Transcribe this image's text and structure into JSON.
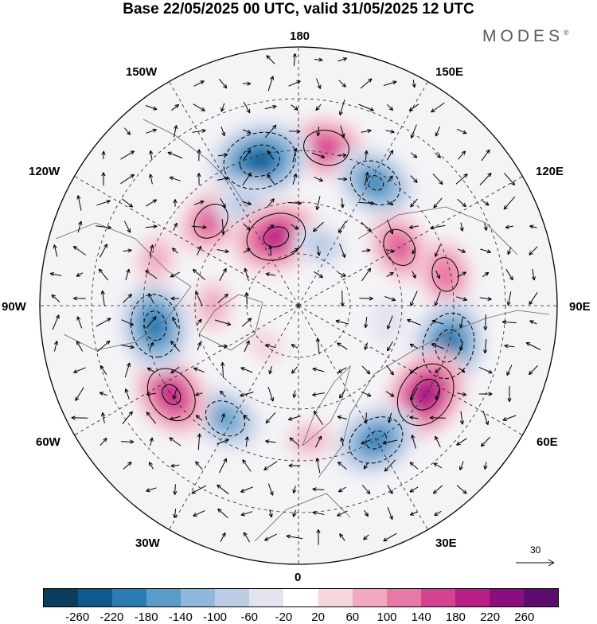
{
  "title": "Base 22/05/2025 00 UTC, valid 31/05/2025 12 UTC",
  "brand": "MODES",
  "brand_mark": "®",
  "longitude_labels": [
    "180",
    "150E",
    "120E",
    "90E",
    "60E",
    "30E",
    "0",
    "30W",
    "60W",
    "90W",
    "120W",
    "150W"
  ],
  "vector_scale_label": "30",
  "colorbar": {
    "ticks": [
      "-260",
      "-220",
      "-180",
      "-140",
      "-100",
      "-60",
      "-20",
      "20",
      "60",
      "100",
      "140",
      "180",
      "220",
      "260"
    ],
    "colors": [
      "#0c3c5c",
      "#0e5a8a",
      "#2c7cb4",
      "#5a9cc8",
      "#8fb8da",
      "#bccde6",
      "#e4e4f0",
      "#ffffff",
      "#f6d6dc",
      "#f0a9bf",
      "#e879a6",
      "#d54493",
      "#b81f84",
      "#8c0d7d",
      "#5c0b6e"
    ]
  },
  "map_style": {
    "ocean": "#f4f4f7",
    "coast": "#666666",
    "grid": "#222222"
  },
  "anomaly_cells": [
    {
      "lon": 170,
      "r": 0.62,
      "value": 170
    },
    {
      "lon": -165,
      "r": 0.58,
      "value": -250
    },
    {
      "lon": 148,
      "r": 0.56,
      "value": -190
    },
    {
      "lon": -134,
      "r": 0.47,
      "value": 150
    },
    {
      "lon": -152,
      "r": 0.45,
      "value": -100
    },
    {
      "lon": -162,
      "r": 0.28,
      "value": 210
    },
    {
      "lon": 160,
      "r": 0.25,
      "value": -90
    },
    {
      "lon": 120,
      "r": 0.45,
      "value": 150
    },
    {
      "lon": 102,
      "r": 0.58,
      "value": 140
    },
    {
      "lon": 75,
      "r": 0.6,
      "value": -230
    },
    {
      "lon": 55,
      "r": 0.6,
      "value": 230
    },
    {
      "lon": 30,
      "r": 0.6,
      "value": -200
    },
    {
      "lon": 5,
      "r": 0.52,
      "value": 70
    },
    {
      "lon": -33,
      "r": 0.52,
      "value": -160
    },
    {
      "lon": -55,
      "r": 0.6,
      "value": 200
    },
    {
      "lon": -82,
      "r": 0.56,
      "value": -220
    },
    {
      "lon": -108,
      "r": 0.58,
      "value": 80
    },
    {
      "lon": -90,
      "r": 0.33,
      "value": 80
    },
    {
      "lon": -40,
      "r": 0.2,
      "value": 40
    },
    {
      "lon": 80,
      "r": 0.35,
      "value": -60
    }
  ]
}
